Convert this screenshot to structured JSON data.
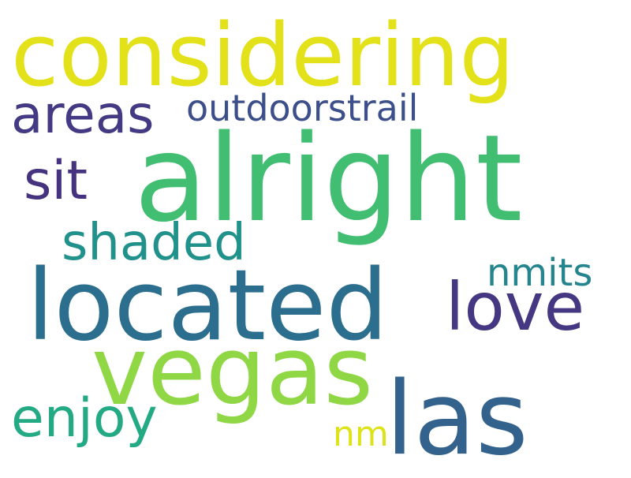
{
  "words": [
    {
      "text": "considering",
      "color": "#e3e21a"
    },
    {
      "text": "alright",
      "color": "#41be71"
    },
    {
      "text": "located",
      "color": "#2c6e8e"
    },
    {
      "text": "vegas",
      "color": "#8fd744"
    },
    {
      "text": "las",
      "color": "#33638d"
    },
    {
      "text": "love",
      "color": "#453781"
    },
    {
      "text": "areas",
      "color": "#443a83"
    },
    {
      "text": "outdoorstrail",
      "color": "#3c4f8a"
    },
    {
      "text": "sit",
      "color": "#46337f"
    },
    {
      "text": "shaded",
      "color": "#21918c"
    },
    {
      "text": "nmits",
      "color": "#25858e"
    },
    {
      "text": "enjoy",
      "color": "#23a983"
    },
    {
      "text": "nm",
      "color": "#dde318"
    }
  ]
}
